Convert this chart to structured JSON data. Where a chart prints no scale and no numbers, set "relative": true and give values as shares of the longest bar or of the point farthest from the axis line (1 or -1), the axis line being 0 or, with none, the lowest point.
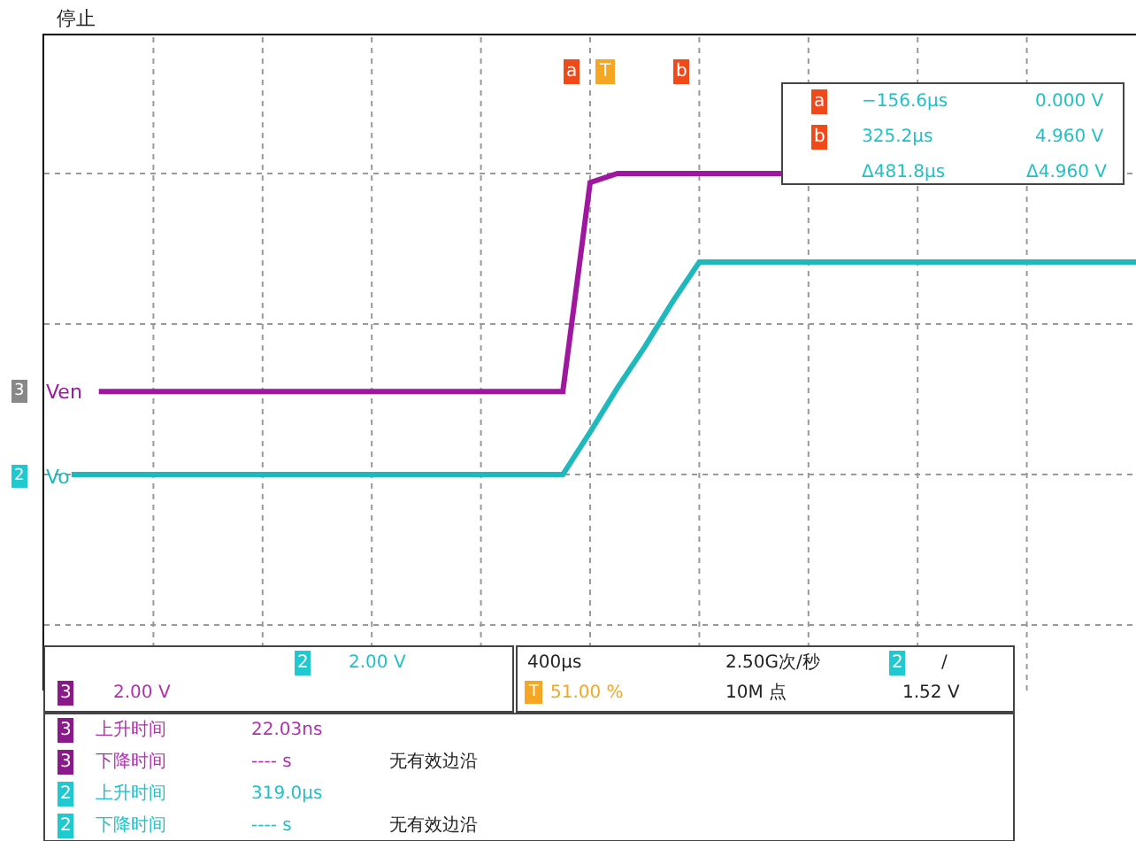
{
  "chart_data": {
    "type": "line",
    "relative": true,
    "grid": true,
    "legend": "left",
    "marker": "none",
    "line_style": "solid",
    "categories": [
      null,
      null,
      null,
      null,
      null,
      null,
      null,
      null,
      null,
      null,
      null,
      null,
      null,
      null,
      null,
      null,
      null,
      null,
      null,
      null,
      null,
      null,
      null,
      null,
      null,
      null,
      null,
      null,
      null,
      null,
      null,
      null,
      null,
      null,
      null,
      null,
      null,
      null,
      null,
      null,
      null
    ],
    "series": [
      {
        "name": "Ven",
        "color": "#a0179f",
        "values": [
          null,
          null,
          0.276,
          0.276,
          0.276,
          0.276,
          0.276,
          0.276,
          0.276,
          0.276,
          0.276,
          0.276,
          0.276,
          0.276,
          0.276,
          0.276,
          0.276,
          0.276,
          0.276,
          0.276,
          0.97,
          1,
          1,
          1,
          1,
          1,
          1,
          1,
          null,
          null,
          null,
          null,
          null,
          null,
          null,
          null,
          null,
          null,
          null,
          null,
          null
        ]
      },
      {
        "name": "Vo",
        "color": "#1fb8bd",
        "values": [
          null,
          0,
          0,
          0,
          0,
          0,
          0,
          0,
          0,
          0,
          0,
          0,
          0,
          0,
          0,
          0,
          0,
          0,
          0,
          0,
          0.141,
          0.288,
          0.424,
          0.571,
          0.706,
          0.706,
          0.706,
          0.706,
          0.706,
          0.706,
          0.706,
          0.706,
          0.706,
          0.706,
          0.706,
          0.706,
          0.706,
          0.706,
          0.706,
          0.706,
          0.706
        ]
      }
    ],
    "annotations": [
      "停止",
      "T",
      "a",
      "−156.6µs",
      "0.000 V",
      "b",
      "325.2µs",
      "4.960 V",
      "Δ481.8µs",
      "Δ4.960 V",
      "3",
      "2",
      "2",
      "2.00 V",
      "3",
      "2.00 V",
      "400µs",
      "T",
      "51.00 %",
      "2.50G次/秒",
      "10M 点",
      "2",
      "/",
      "1.52 V",
      "3",
      "上升时间",
      "22.03ns",
      "3",
      "下降时间",
      "---- s",
      "无有效边沿",
      "2",
      "上升时间",
      "319.0µs",
      "2",
      "下降时间",
      "---- s",
      "无有效边沿",
      "a",
      "b"
    ]
  }
}
